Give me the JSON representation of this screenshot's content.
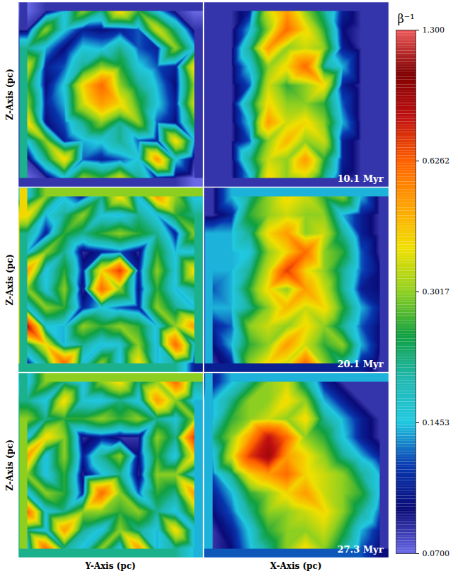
{
  "chart_data": {
    "type": "heatmap",
    "x_labels": [
      "Y-Axis (pc)",
      "X-Axis (pc)"
    ],
    "y_labels": [
      "Z-Axis (pc)",
      "Z-Axis (pc)",
      "Z-Axis (pc)"
    ],
    "annotations": [
      "10.1 Myr",
      "20.1 Myr",
      "27.3 Myr"
    ],
    "tick_labels": false,
    "colorbar": {
      "title": "β⁻¹",
      "log": true,
      "lim": [
        0.07,
        1.3
      ],
      "ticks": [
        {
          "value": 0.07,
          "label": "0.0700"
        },
        0.1453,
        0.3017,
        0.6262,
        {
          "value": 1.3,
          "label": "1.300"
        }
      ]
    },
    "panels": [
      [
        [
          [
            0.07,
            0.08,
            0.14,
            0.3,
            0.2,
            0.4,
            0.25,
            0.15,
            0.08,
            0.07
          ],
          [
            0.08,
            0.3,
            0.15,
            0.1,
            0.09,
            0.1,
            0.12,
            0.35,
            0.2,
            0.08
          ],
          [
            0.2,
            0.14,
            0.09,
            0.15,
            0.14,
            0.2,
            0.12,
            0.1,
            0.3,
            0.15
          ],
          [
            0.35,
            0.1,
            0.12,
            0.2,
            0.3,
            0.25,
            0.15,
            0.12,
            0.1,
            0.4
          ],
          [
            0.25,
            0.09,
            0.15,
            0.4,
            0.6,
            0.3,
            0.2,
            0.14,
            0.09,
            0.3
          ],
          [
            0.3,
            0.1,
            0.14,
            0.35,
            0.5,
            0.4,
            0.25,
            0.15,
            0.1,
            0.35
          ],
          [
            0.4,
            0.09,
            0.12,
            0.2,
            0.3,
            0.2,
            0.3,
            0.12,
            0.09,
            0.25
          ],
          [
            0.15,
            0.3,
            0.1,
            0.14,
            0.15,
            0.2,
            0.12,
            0.1,
            0.4,
            0.14
          ],
          [
            0.08,
            0.2,
            0.4,
            0.12,
            0.1,
            0.12,
            0.15,
            0.5,
            0.15,
            0.08
          ],
          [
            0.07,
            0.08,
            0.15,
            0.3,
            0.25,
            0.35,
            0.2,
            0.1,
            0.08,
            0.07
          ]
        ],
        [
          [
            0.08,
            0.08,
            0.1,
            0.35,
            0.5,
            0.3,
            0.2,
            0.1,
            0.08,
            0.08
          ],
          [
            0.08,
            0.08,
            0.14,
            0.3,
            0.6,
            0.4,
            0.25,
            0.09,
            0.08,
            0.08
          ],
          [
            0.08,
            0.08,
            0.2,
            0.5,
            0.3,
            0.35,
            0.3,
            0.1,
            0.08,
            0.08
          ],
          [
            0.08,
            0.08,
            0.15,
            0.3,
            0.4,
            0.6,
            0.2,
            0.14,
            0.08,
            0.08
          ],
          [
            0.08,
            0.08,
            0.12,
            0.35,
            0.25,
            0.3,
            0.4,
            0.1,
            0.08,
            0.08
          ],
          [
            0.08,
            0.08,
            0.2,
            0.4,
            0.3,
            0.3,
            0.25,
            0.12,
            0.08,
            0.08
          ],
          [
            0.08,
            0.08,
            0.15,
            0.5,
            0.35,
            0.4,
            0.3,
            0.14,
            0.08,
            0.08
          ],
          [
            0.08,
            0.08,
            0.12,
            0.3,
            0.45,
            0.3,
            0.35,
            0.1,
            0.08,
            0.08
          ],
          [
            0.08,
            0.08,
            0.2,
            0.35,
            0.3,
            0.5,
            0.25,
            0.1,
            0.08,
            0.08
          ],
          [
            0.08,
            0.08,
            0.14,
            0.4,
            0.3,
            0.35,
            0.2,
            0.09,
            0.08,
            0.08
          ]
        ]
      ],
      [
        [
          [
            0.15,
            0.3,
            0.14,
            0.1,
            0.2,
            0.4,
            0.14,
            0.5,
            0.3,
            0.14
          ],
          [
            0.4,
            0.14,
            0.2,
            0.3,
            0.15,
            0.14,
            0.2,
            0.14,
            0.25,
            0.2
          ],
          [
            0.2,
            0.1,
            0.25,
            0.2,
            0.25,
            0.3,
            0.25,
            0.2,
            0.1,
            0.3
          ],
          [
            0.14,
            0.3,
            0.2,
            0.08,
            0.1,
            0.12,
            0.08,
            0.25,
            0.14,
            0.15
          ],
          [
            0.5,
            0.14,
            0.25,
            0.1,
            0.4,
            0.7,
            0.1,
            0.3,
            0.15,
            0.4
          ],
          [
            0.3,
            0.15,
            0.3,
            0.08,
            0.6,
            0.3,
            0.09,
            0.25,
            0.14,
            0.2
          ],
          [
            0.14,
            0.3,
            0.25,
            0.1,
            0.15,
            0.12,
            0.1,
            0.3,
            0.2,
            0.14
          ],
          [
            0.8,
            0.15,
            0.14,
            0.3,
            0.25,
            0.3,
            0.25,
            0.14,
            0.3,
            0.5
          ],
          [
            0.2,
            0.4,
            0.14,
            0.2,
            0.14,
            0.15,
            0.3,
            0.14,
            0.6,
            0.15
          ],
          [
            0.1,
            0.2,
            0.6,
            0.14,
            0.3,
            0.14,
            0.4,
            0.14,
            0.2,
            0.1
          ]
        ],
        [
          [
            0.08,
            0.14,
            0.2,
            0.3,
            0.4,
            0.35,
            0.25,
            0.3,
            0.14,
            0.08
          ],
          [
            0.08,
            0.1,
            0.25,
            0.3,
            0.35,
            0.3,
            0.3,
            0.14,
            0.1,
            0.08
          ],
          [
            0.14,
            0.14,
            0.2,
            0.4,
            0.5,
            0.3,
            0.35,
            0.2,
            0.1,
            0.08
          ],
          [
            0.14,
            0.14,
            0.15,
            0.3,
            0.4,
            0.6,
            0.3,
            0.25,
            0.12,
            0.08
          ],
          [
            0.14,
            0.14,
            0.2,
            0.35,
            0.7,
            0.4,
            0.3,
            0.2,
            0.12,
            0.09
          ],
          [
            0.12,
            0.14,
            0.25,
            0.4,
            0.3,
            0.5,
            0.35,
            0.2,
            0.1,
            0.09
          ],
          [
            0.14,
            0.14,
            0.2,
            0.3,
            0.45,
            0.35,
            0.4,
            0.25,
            0.14,
            0.1
          ],
          [
            0.1,
            0.12,
            0.3,
            0.35,
            0.3,
            0.4,
            0.3,
            0.2,
            0.12,
            0.09
          ],
          [
            0.09,
            0.14,
            0.25,
            0.3,
            0.5,
            0.35,
            0.25,
            0.3,
            0.14,
            0.09
          ],
          [
            0.08,
            0.1,
            0.3,
            0.4,
            0.35,
            0.6,
            0.3,
            0.2,
            0.1,
            0.08
          ]
        ]
      ],
      [
        [
          [
            0.14,
            0.3,
            0.2,
            0.14,
            0.3,
            0.4,
            0.2,
            0.3,
            0.6,
            0.2
          ],
          [
            0.2,
            0.14,
            0.4,
            0.15,
            0.14,
            0.2,
            0.14,
            0.5,
            0.3,
            0.14
          ],
          [
            0.3,
            0.2,
            0.25,
            0.25,
            0.3,
            0.25,
            0.3,
            0.2,
            0.15,
            0.3
          ],
          [
            0.14,
            0.4,
            0.3,
            0.08,
            0.1,
            0.08,
            0.08,
            0.3,
            0.2,
            0.7
          ],
          [
            0.5,
            0.14,
            0.3,
            0.1,
            0.2,
            0.3,
            0.09,
            0.25,
            0.14,
            0.4
          ],
          [
            0.3,
            0.14,
            0.25,
            0.08,
            0.14,
            0.2,
            0.08,
            0.3,
            0.3,
            0.14
          ],
          [
            0.14,
            0.3,
            0.25,
            0.1,
            0.6,
            0.3,
            0.12,
            0.25,
            0.2,
            0.5
          ],
          [
            0.6,
            0.15,
            0.2,
            0.3,
            0.3,
            0.25,
            0.3,
            0.2,
            0.14,
            0.3
          ],
          [
            0.2,
            0.14,
            0.5,
            0.2,
            0.14,
            0.3,
            0.2,
            0.14,
            0.4,
            0.14
          ],
          [
            0.14,
            0.6,
            0.2,
            0.14,
            0.3,
            0.14,
            0.5,
            0.14,
            0.2,
            0.14
          ]
        ],
        [
          [
            0.1,
            0.14,
            0.2,
            0.3,
            0.35,
            0.2,
            0.1,
            0.08,
            0.08,
            0.08
          ],
          [
            0.14,
            0.2,
            0.3,
            0.3,
            0.4,
            0.3,
            0.14,
            0.1,
            0.08,
            0.08
          ],
          [
            0.14,
            0.25,
            0.3,
            0.35,
            0.3,
            0.4,
            0.2,
            0.14,
            0.1,
            0.08
          ],
          [
            0.2,
            0.3,
            0.5,
            0.8,
            0.6,
            0.3,
            0.25,
            0.15,
            0.1,
            0.08
          ],
          [
            0.14,
            0.35,
            0.7,
            0.9,
            0.5,
            0.4,
            0.3,
            0.2,
            0.14,
            0.1
          ],
          [
            0.12,
            0.2,
            0.4,
            0.5,
            0.6,
            0.4,
            0.35,
            0.3,
            0.2,
            0.14
          ],
          [
            0.1,
            0.14,
            0.25,
            0.3,
            0.4,
            0.5,
            0.35,
            0.3,
            0.25,
            0.14
          ],
          [
            0.09,
            0.12,
            0.2,
            0.3,
            0.3,
            0.35,
            0.4,
            0.3,
            0.2,
            0.12
          ],
          [
            0.08,
            0.1,
            0.15,
            0.25,
            0.3,
            0.3,
            0.35,
            0.25,
            0.14,
            0.1
          ],
          [
            0.08,
            0.09,
            0.14,
            0.2,
            0.3,
            0.4,
            0.3,
            0.2,
            0.12,
            0.09
          ]
        ]
      ]
    ]
  }
}
